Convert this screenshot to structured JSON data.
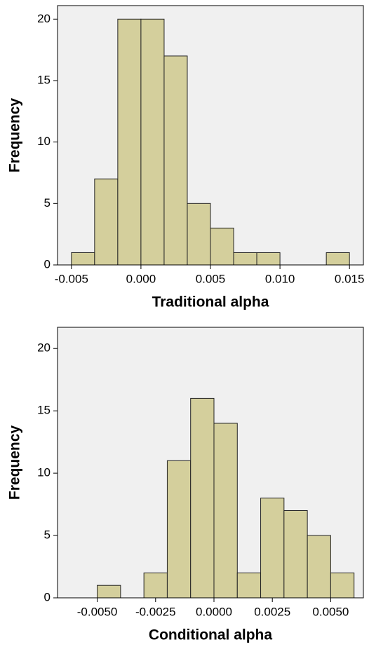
{
  "chart_data": [
    {
      "type": "histogram",
      "xlabel": "Traditional alpha",
      "ylabel": "Frequency",
      "bins": [
        -0.005,
        -0.003333,
        -0.001667,
        0,
        0.001667,
        0.003333,
        0.005,
        0.006667,
        0.008333,
        0.01,
        0.011667,
        0.013333,
        0.015
      ],
      "values": [
        1,
        7,
        20,
        20,
        17,
        5,
        3,
        1,
        1,
        0,
        0,
        1
      ],
      "color": "#d4cf9c",
      "edgecolor": "#222222",
      "background": "#f0f0f0",
      "xlim": [
        -0.006,
        0.016
      ],
      "ylim": [
        0,
        21.1
      ],
      "xticks": [
        {
          "value": -0.005,
          "label": "-0.005"
        },
        {
          "value": 0,
          "label": "0.000"
        },
        {
          "value": 0.005,
          "label": "0.005"
        },
        {
          "value": 0.01,
          "label": "0.010"
        },
        {
          "value": 0.015,
          "label": "0.015"
        }
      ],
      "yticks": [
        0,
        5,
        10,
        15,
        20
      ]
    },
    {
      "type": "histogram",
      "xlabel": "Conditional alpha",
      "ylabel": "Frequency",
      "bins": [
        -0.005,
        -0.004,
        -0.003,
        -0.002,
        -0.001,
        0,
        0.001,
        0.002,
        0.003,
        0.004,
        0.005,
        0.006
      ],
      "values": [
        1,
        0,
        2,
        11,
        16,
        14,
        2,
        8,
        7,
        5,
        2
      ],
      "color": "#d4cf9c",
      "edgecolor": "#222222",
      "background": "#f0f0f0",
      "xlim": [
        -0.0067,
        0.0064
      ],
      "ylim": [
        0,
        21.7
      ],
      "xticks": [
        {
          "value": -0.005,
          "label": "-0.0050"
        },
        {
          "value": -0.0025,
          "label": "-0.0025"
        },
        {
          "value": 0,
          "label": "0.0000"
        },
        {
          "value": 0.0025,
          "label": "0.0025"
        },
        {
          "value": 0.005,
          "label": "0.0050"
        }
      ],
      "yticks": [
        0,
        5,
        10,
        15,
        20
      ]
    }
  ]
}
